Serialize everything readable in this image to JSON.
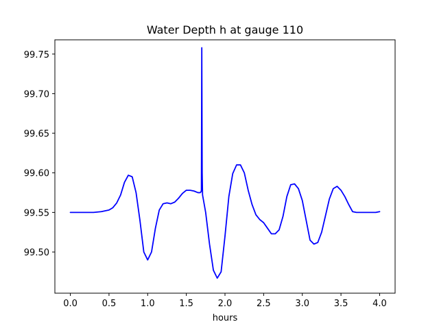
{
  "chart_data": {
    "type": "line",
    "title": "Water Depth h at gauge 110",
    "xlabel": "hours",
    "ylabel": "",
    "xlim": [
      -0.2,
      4.2
    ],
    "ylim": [
      99.448,
      99.768
    ],
    "xticks": [
      0.0,
      0.5,
      1.0,
      1.5,
      2.0,
      2.5,
      3.0,
      3.5,
      4.0
    ],
    "xtick_labels": [
      "0.0",
      "0.5",
      "1.0",
      "1.5",
      "2.0",
      "2.5",
      "3.0",
      "3.5",
      "4.0"
    ],
    "yticks": [
      99.5,
      99.55,
      99.6,
      99.65,
      99.7,
      99.75
    ],
    "ytick_labels": [
      "99.50",
      "99.55",
      "99.60",
      "99.65",
      "99.70",
      "99.75"
    ],
    "grid": false,
    "legend": "none",
    "series": [
      {
        "color": "#0000ff",
        "x": [
          0.0,
          0.1,
          0.2,
          0.3,
          0.4,
          0.5,
          0.55,
          0.6,
          0.65,
          0.7,
          0.75,
          0.8,
          0.85,
          0.9,
          0.95,
          1.0,
          1.05,
          1.1,
          1.15,
          1.2,
          1.25,
          1.3,
          1.35,
          1.4,
          1.45,
          1.5,
          1.55,
          1.6,
          1.65,
          1.68,
          1.69,
          1.695,
          1.7,
          1.705,
          1.71,
          1.75,
          1.8,
          1.85,
          1.9,
          1.95,
          2.0,
          2.05,
          2.1,
          2.15,
          2.2,
          2.25,
          2.3,
          2.35,
          2.4,
          2.45,
          2.5,
          2.55,
          2.6,
          2.65,
          2.7,
          2.75,
          2.8,
          2.85,
          2.9,
          2.95,
          3.0,
          3.05,
          3.1,
          3.15,
          3.2,
          3.25,
          3.3,
          3.35,
          3.4,
          3.45,
          3.5,
          3.55,
          3.6,
          3.65,
          3.7,
          3.75,
          3.8,
          3.85,
          3.9,
          3.95,
          4.0
        ],
        "y": [
          99.55,
          99.55,
          99.55,
          99.55,
          99.551,
          99.553,
          99.556,
          99.562,
          99.572,
          99.588,
          99.597,
          99.595,
          99.575,
          99.54,
          99.5,
          99.49,
          99.5,
          99.53,
          99.553,
          99.561,
          99.562,
          99.561,
          99.563,
          99.568,
          99.574,
          99.578,
          99.578,
          99.577,
          99.575,
          99.575,
          99.576,
          99.578,
          99.758,
          99.6,
          99.572,
          99.55,
          99.51,
          99.477,
          99.467,
          99.475,
          99.52,
          99.57,
          99.599,
          99.61,
          99.61,
          99.6,
          99.578,
          99.56,
          99.547,
          99.541,
          99.537,
          99.53,
          99.523,
          99.523,
          99.528,
          99.545,
          99.57,
          99.585,
          99.586,
          99.58,
          99.565,
          99.54,
          99.515,
          99.51,
          99.512,
          99.525,
          99.546,
          99.567,
          99.58,
          99.583,
          99.578,
          99.57,
          99.56,
          99.551,
          99.55,
          99.55,
          99.55,
          99.55,
          99.55,
          99.55,
          99.551
        ]
      }
    ]
  }
}
